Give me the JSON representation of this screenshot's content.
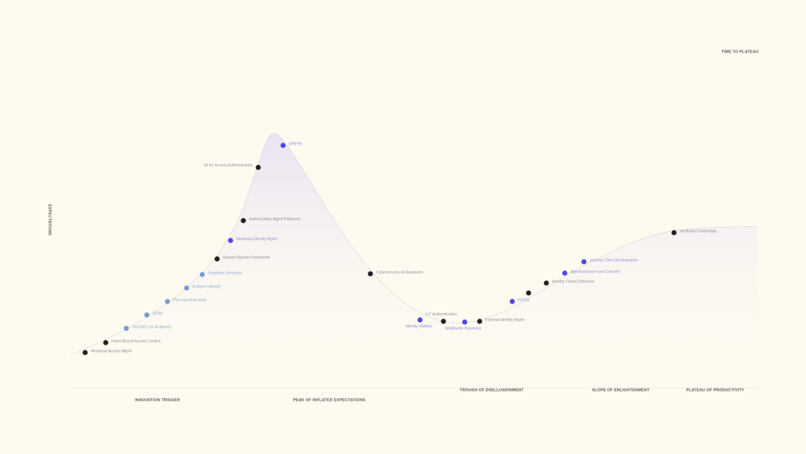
{
  "header": {
    "time_to_plateau": "TIME TO PLATEAU",
    "y_axis": "EXPECTATIONS"
  },
  "phases": [
    "INNOVATION TRIGGER",
    "PEAK OF INFLATED EXPECTATIONS",
    "TROUGH OF DISILLUSIONMENT",
    "SLOPE OF ENLIGHTENMENT",
    "PLATEAU OF PRODUCTIVITY"
  ],
  "nodes": [
    {
      "label": "Workload Access Mgmt",
      "color": "#222222"
    },
    {
      "label": "Intent-Based Access Control",
      "color": "#222222"
    },
    {
      "label": "DNSSEC for AI Agents",
      "color": "#7b9bd1"
    },
    {
      "label": "SCIM",
      "color": "#7b9bd1"
    },
    {
      "label": "Post-quantum Auth",
      "color": "#7b9bd1"
    },
    {
      "label": "AI Agent Identity",
      "color": "#7b9bd1"
    },
    {
      "label": "Deepfake Detection",
      "color": "#7b9bd1"
    },
    {
      "label": "Shared Signals Framework",
      "color": "#222222"
    },
    {
      "label": "Workload Identity Mgmt",
      "color": "#4f46e5"
    },
    {
      "label": "Authorization Mgmt Platforms",
      "color": "#222222"
    },
    {
      "label": "AI for Access Administration",
      "color": "#222222"
    },
    {
      "label": "SPIFFE",
      "color": "#4f46e5"
    },
    {
      "label": "Cybersecurity AI Assistants",
      "color": "#222222"
    },
    {
      "label": "Identity Wallets",
      "color": "#4f46e5"
    },
    {
      "label": "IoT Authentication",
      "color": "#222222"
    },
    {
      "label": "Multifactor Passkeys",
      "color": "#4f46e5"
    },
    {
      "label": "External Identity Mgmt",
      "color": "#222222"
    },
    {
      "label": "FIDO2",
      "color": "#4f46e5"
    },
    {
      "label": null,
      "color": "#222222"
    },
    {
      "label": "Identity Threat Detection",
      "color": "#222222"
    },
    {
      "label": "Age Assurance and Consent",
      "color": "#4f46e5"
    },
    {
      "label": "Journey-Time Orchestration",
      "color": "#4f46e5"
    },
    {
      "label": "Verifiable Credentials",
      "color": "#222222"
    }
  ]
}
